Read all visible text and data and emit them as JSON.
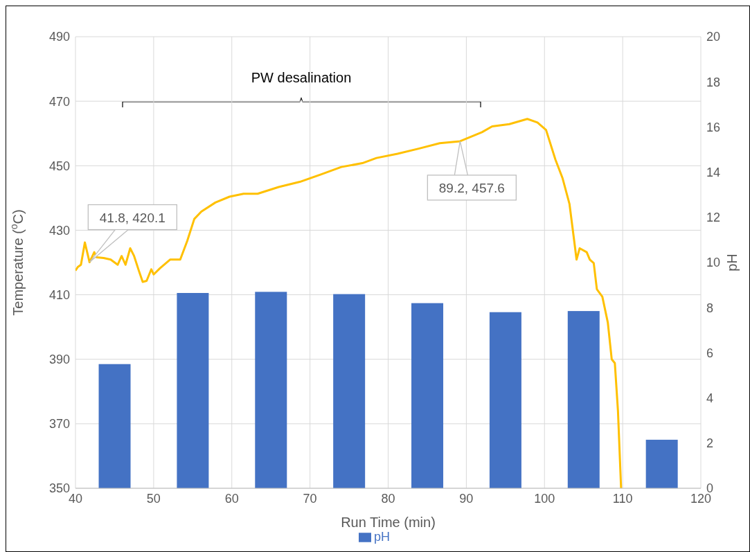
{
  "chart_data": {
    "type": "bar",
    "xlabel": "Run Time (min)",
    "ylabel": "Temperature ($^{o}$C)",
    "y2label": "pH",
    "xlim": [
      40,
      120
    ],
    "xticks": [
      40,
      50,
      60,
      70,
      80,
      90,
      100,
      110,
      120
    ],
    "ylim": [
      350,
      490
    ],
    "yticks": [
      350,
      370,
      390,
      410,
      430,
      450,
      470,
      490
    ],
    "y2lim": [
      0,
      20
    ],
    "y2ticks": [
      0,
      2,
      4,
      6,
      8,
      10,
      12,
      14,
      16,
      18,
      20
    ],
    "grid": true,
    "legend": "bottom",
    "marker": "none",
    "annotations": [
      "PW desalination",
      {
        "text": "41.8, 420.1",
        "x": 41.8,
        "y": 420.1
      },
      {
        "text": "89.2, 457.6",
        "x": 89.2,
        "y": 457.6
      }
    ],
    "series": [
      {
        "name": "pH",
        "color": "#4472c4",
        "axis": "y2",
        "x": [
          45,
          55,
          65,
          75,
          85,
          95,
          105,
          115
        ],
        "values": [
          5.5,
          8.65,
          8.7,
          8.6,
          8.2,
          7.8,
          7.85,
          2.15
        ]
      },
      {
        "type": "line",
        "color": "#ffc000",
        "x": [
          40,
          40.3,
          40.7,
          41.2,
          41.8,
          42.4,
          42.7,
          43.6,
          44.5,
          45.4,
          45.9,
          46.4,
          47,
          47.5,
          48.1,
          48.6,
          49.1,
          49.7,
          50,
          50.8,
          52.1,
          53.4,
          54.3,
          55.2,
          56.1,
          57.9,
          59.7,
          61.5,
          63.3,
          66,
          68.7,
          71.4,
          74,
          76.7,
          78.5,
          81.2,
          83.9,
          86.6,
          89.2,
          92,
          93.3,
          95.5,
          97.8,
          99.1,
          100.2,
          101.4,
          102.3,
          103.2,
          103.8,
          104.1,
          104.5,
          105.4,
          105.8,
          106.3,
          106.7,
          107.4,
          108.1,
          108.6,
          109,
          109.4,
          109.8
        ],
        "values": [
          417.5,
          418.6,
          419.3,
          426.2,
          420.1,
          423.2,
          421.6,
          421.4,
          420.9,
          419.3,
          422,
          419.3,
          424.4,
          422,
          417.5,
          414,
          414.3,
          417.9,
          416.3,
          418.2,
          420.9,
          420.9,
          426.7,
          433.5,
          435.8,
          438.6,
          440.4,
          441.3,
          441.3,
          443.4,
          445,
          447.3,
          449.6,
          450.8,
          452.4,
          453.7,
          455.3,
          457,
          457.6,
          460.4,
          462.2,
          462.9,
          464.5,
          463.4,
          461.1,
          451.9,
          446.2,
          438.1,
          426.7,
          420.9,
          424.4,
          423.2,
          420.9,
          419.8,
          411.7,
          409.4,
          401.4,
          390,
          388.8,
          373.9,
          350
        ]
      }
    ]
  }
}
